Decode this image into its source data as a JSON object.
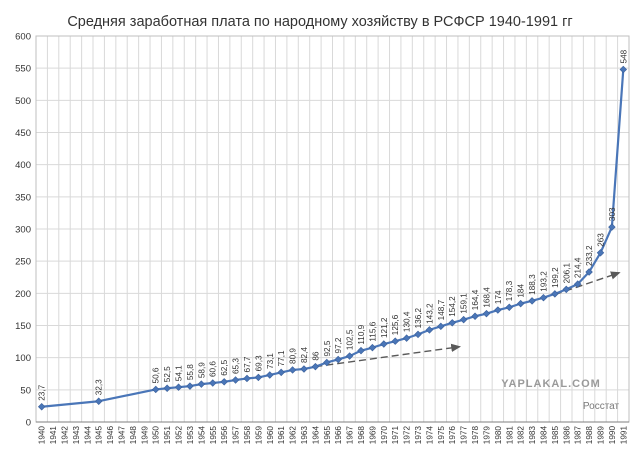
{
  "chart_data": {
    "type": "line",
    "title": "Средняя заработная плата по народному хозяйству в РСФСР 1940-1991 гг",
    "xlabel": "",
    "ylabel": "",
    "ylim": [
      0,
      600
    ],
    "yticks": [
      "0",
      "50",
      "100",
      "150",
      "200",
      "250",
      "300",
      "350",
      "400",
      "450",
      "500",
      "550",
      "600"
    ],
    "grid": true,
    "legend": "none",
    "x": [
      "1940",
      "1941",
      "1942",
      "1943",
      "1944",
      "1945",
      "1946",
      "1947",
      "1948",
      "1949",
      "1950",
      "1951",
      "1952",
      "1953",
      "1954",
      "1955",
      "1956",
      "1957",
      "1958",
      "1959",
      "1960",
      "1961",
      "1962",
      "1963",
      "1964",
      "1965",
      "1966",
      "1967",
      "1968",
      "1969",
      "1970",
      "1971",
      "1972",
      "1973",
      "1974",
      "1975",
      "1976",
      "1977",
      "1978",
      "1979",
      "1980",
      "1981",
      "1982",
      "1983",
      "1984",
      "1985",
      "1986",
      "1987",
      "1988",
      "1989",
      "1990",
      "1991"
    ],
    "series": [
      {
        "values": [
          23.7,
          null,
          null,
          null,
          null,
          32.3,
          null,
          null,
          null,
          null,
          50.6,
          52.5,
          54.1,
          55.8,
          58.9,
          60.6,
          62.5,
          65.3,
          67.7,
          69.3,
          73.1,
          77.1,
          80.9,
          82.4,
          86,
          92.5,
          97.2,
          102.5,
          110.9,
          115.6,
          121.2,
          125.6,
          130.4,
          136.2,
          143.2,
          148.7,
          154.2,
          159.1,
          164.4,
          168.4,
          174,
          178.3,
          184,
          188.3,
          193.2,
          199.2,
          206.1,
          214.4,
          233.2,
          263,
          303,
          548
        ],
        "labels": [
          "23,7",
          "",
          "",
          "",
          "",
          "32,3",
          "",
          "",
          "",
          "",
          "50,6",
          "52,5",
          "54,1",
          "55,8",
          "58,9",
          "60,6",
          "62,5",
          "65,3",
          "67,7",
          "69,3",
          "73,1",
          "77,1",
          "80,9",
          "82,4",
          "86",
          "92,5",
          "97,2",
          "102,5",
          "110,9",
          "115,6",
          "121,2",
          "125,6",
          "130,4",
          "136,2",
          "143,2",
          "148,7",
          "154,2",
          "159,1",
          "164,4",
          "168,4",
          "174",
          "178,3",
          "184",
          "188,3",
          "193,2",
          "199,2",
          "206,1",
          "214,4",
          "233,2",
          "263",
          "303",
          "548"
        ]
      }
    ],
    "trend_arrows": [
      {
        "from": [
          1964,
          86
        ],
        "to": [
          1977,
          117
        ]
      },
      {
        "from": [
          1985,
          198
        ],
        "to": [
          1991,
          232
        ]
      }
    ],
    "colors": {
      "line": "#4a76b8",
      "marker": "#4a76b8",
      "grid": "#d9d9d9",
      "arrow": "#595959"
    }
  },
  "watermark": "YAPLAKAL.COM",
  "source": "Росстат"
}
